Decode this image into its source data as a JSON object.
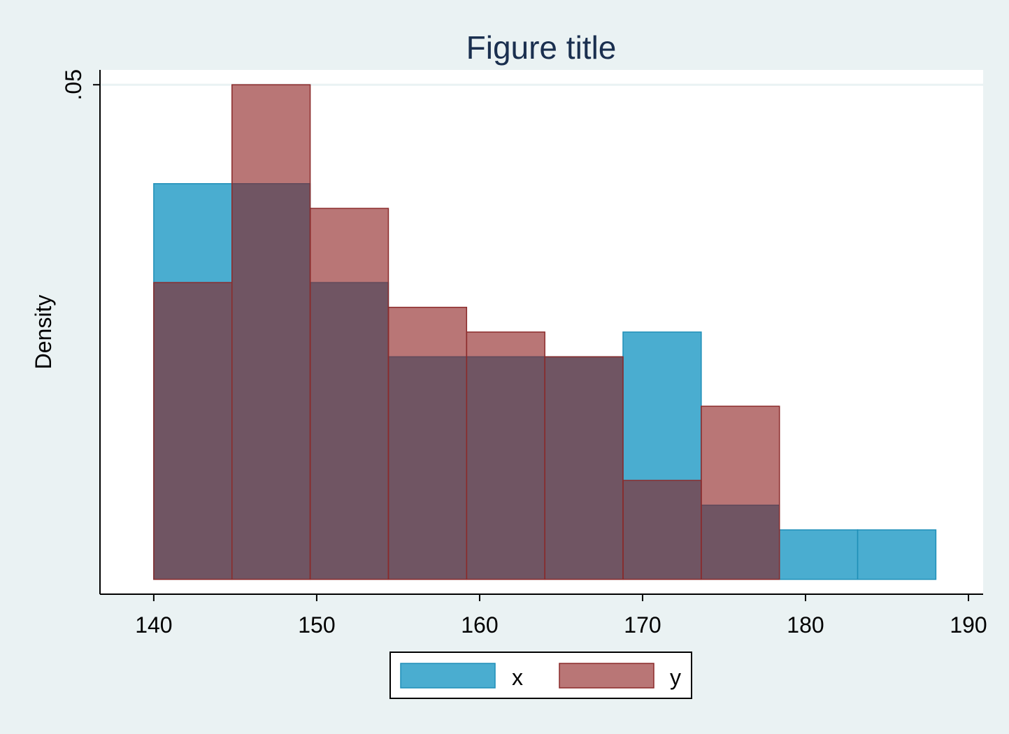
{
  "chart_data": {
    "type": "bar",
    "subtype": "overlaid-histogram",
    "title": "Figure title",
    "xlabel": "",
    "ylabel": "Density",
    "xlim": [
      136.7,
      190.9
    ],
    "ylim": [
      -0.0015,
      0.0515
    ],
    "x_ticks": [
      140,
      150,
      160,
      170,
      180,
      190
    ],
    "y_ticks": [
      0.05
    ],
    "y_tick_labels": [
      ".05"
    ],
    "grid": "horizontal at y ticks",
    "legend_position": "bottom",
    "series": [
      {
        "name": "x",
        "color": "#4aadd0",
        "edge_color": "#1f8fb8",
        "opacity": 1,
        "bins": [
          {
            "x0": 140.0,
            "x1": 144.8,
            "value": 0.04
          },
          {
            "x0": 144.8,
            "x1": 149.6,
            "value": 0.04
          },
          {
            "x0": 149.6,
            "x1": 154.4,
            "value": 0.03
          },
          {
            "x0": 154.4,
            "x1": 159.2,
            "value": 0.0225
          },
          {
            "x0": 159.2,
            "x1": 164.0,
            "value": 0.0225
          },
          {
            "x0": 164.0,
            "x1": 168.8,
            "value": 0.0225
          },
          {
            "x0": 168.8,
            "x1": 173.6,
            "value": 0.025
          },
          {
            "x0": 173.6,
            "x1": 178.4,
            "value": 0.0075
          },
          {
            "x0": 178.4,
            "x1": 183.2,
            "value": 0.005
          },
          {
            "x0": 183.2,
            "x1": 188.0,
            "value": 0.005
          }
        ]
      },
      {
        "name": "y",
        "color": "#8b1a1a",
        "edge_color": "#8b2a2a",
        "opacity": 0.6,
        "bins": [
          {
            "x0": 140.0,
            "x1": 144.8,
            "value": 0.03
          },
          {
            "x0": 144.8,
            "x1": 149.6,
            "value": 0.05
          },
          {
            "x0": 149.6,
            "x1": 154.4,
            "value": 0.0375
          },
          {
            "x0": 154.4,
            "x1": 159.2,
            "value": 0.0275
          },
          {
            "x0": 159.2,
            "x1": 164.0,
            "value": 0.025
          },
          {
            "x0": 164.0,
            "x1": 168.8,
            "value": 0.0225
          },
          {
            "x0": 168.8,
            "x1": 173.6,
            "value": 0.01
          },
          {
            "x0": 173.6,
            "x1": 178.4,
            "value": 0.0175
          }
        ]
      }
    ]
  },
  "colors": {
    "page_background": "#eaf2f3",
    "plot_background": "#ffffff",
    "title_color": "#1a2f4f",
    "grid_color": "#eaf2f3"
  }
}
